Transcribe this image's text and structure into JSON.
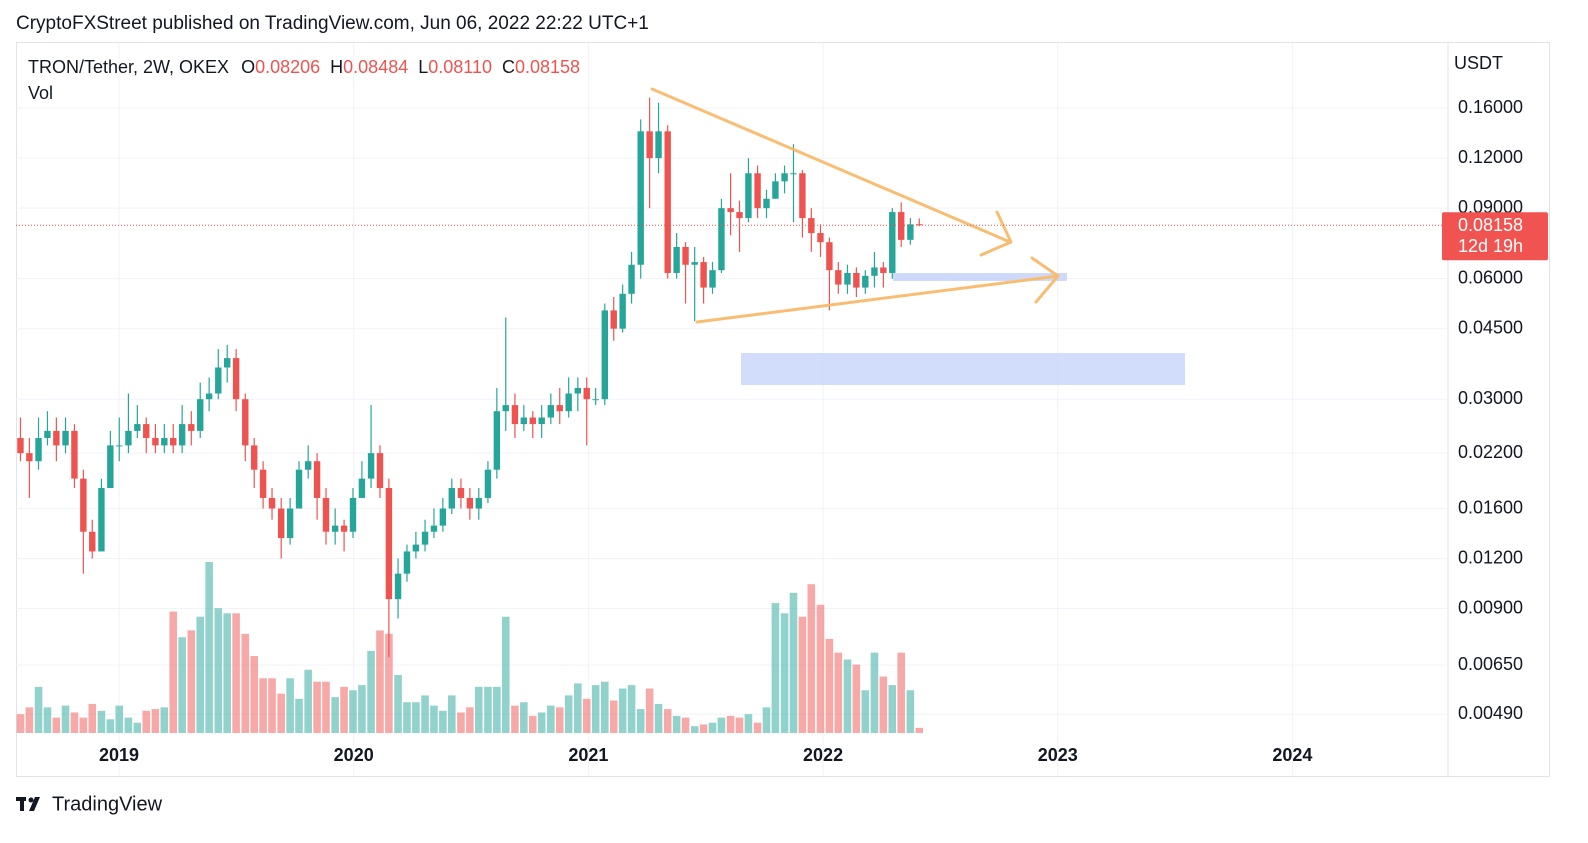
{
  "header": {
    "attribution": "CryptoFXStreet published on TradingView.com, Jun 06, 2022 22:22 UTC+1"
  },
  "footer": {
    "brand": "TradingView"
  },
  "chart_data": {
    "type": "candlestick",
    "title": "TRON/Tether, 2W, OKEX",
    "ohlc_legend": [
      {
        "key": "O",
        "value": "0.08206"
      },
      {
        "key": "H",
        "value": "0.08484"
      },
      {
        "key": "L",
        "value": "0.08110"
      },
      {
        "key": "C",
        "value": "0.08158"
      }
    ],
    "volume_label": "Vol",
    "y_unit": "USDT",
    "last_price_label": "0.08158",
    "countdown": "12d 19h",
    "colors": {
      "up": "#26a69a",
      "down": "#ef5350"
    },
    "log_scale": true,
    "grid": true,
    "xlim": [
      2018.561,
      2024.663
    ],
    "xticks": [
      2019,
      2020,
      2021,
      2022,
      2023,
      2024
    ],
    "ylim": [
      0.0044,
      0.23
    ],
    "yticks": [
      {
        "value": 0.0049,
        "label": "0.00490"
      },
      {
        "value": 0.0065,
        "label": "0.00650"
      },
      {
        "value": 0.009,
        "label": "0.00900"
      },
      {
        "value": 0.012,
        "label": "0.01200"
      },
      {
        "value": 0.016,
        "label": "0.01600"
      },
      {
        "value": 0.022,
        "label": "0.02200"
      },
      {
        "value": 0.03,
        "label": "0.03000"
      },
      {
        "value": 0.045,
        "label": "0.04500"
      },
      {
        "value": 0.06,
        "label": "0.06000"
      },
      {
        "value": 0.09,
        "label": "0.09000"
      },
      {
        "value": 0.12,
        "label": "0.12000"
      },
      {
        "value": 0.16,
        "label": "0.16000"
      }
    ],
    "x": [
      2018.58,
      2018.618,
      2018.657,
      2018.695,
      2018.733,
      2018.772,
      2018.81,
      2018.848,
      2018.886,
      2018.925,
      2018.963,
      2019.001,
      2019.04,
      2019.078,
      2019.116,
      2019.155,
      2019.193,
      2019.231,
      2019.269,
      2019.308,
      2019.346,
      2019.384,
      2019.423,
      2019.461,
      2019.499,
      2019.538,
      2019.576,
      2019.614,
      2019.652,
      2019.691,
      2019.729,
      2019.767,
      2019.806,
      2019.844,
      2019.882,
      2019.921,
      2019.959,
      2019.997,
      2020.035,
      2020.074,
      2020.112,
      2020.15,
      2020.189,
      2020.227,
      2020.265,
      2020.304,
      2020.342,
      2020.38,
      2020.418,
      2020.457,
      2020.495,
      2020.533,
      2020.572,
      2020.61,
      2020.648,
      2020.687,
      2020.725,
      2020.763,
      2020.801,
      2020.84,
      2020.878,
      2020.916,
      2020.955,
      2020.993,
      2021.031,
      2021.07,
      2021.108,
      2021.146,
      2021.184,
      2021.223,
      2021.261,
      2021.299,
      2021.338,
      2021.376,
      2021.414,
      2021.453,
      2021.491,
      2021.529,
      2021.567,
      2021.606,
      2021.644,
      2021.682,
      2021.721,
      2021.759,
      2021.797,
      2021.836,
      2021.874,
      2021.912,
      2021.95,
      2021.989,
      2022.027,
      2022.065,
      2022.104,
      2022.142,
      2022.18,
      2022.219,
      2022.257,
      2022.295,
      2022.333,
      2022.372,
      2022.41
    ],
    "open": [
      0.024,
      0.022,
      0.021,
      0.024,
      0.025,
      0.023,
      0.025,
      0.019,
      0.014,
      0.0125,
      0.018,
      0.023,
      0.023,
      0.025,
      0.026,
      0.024,
      0.023,
      0.024,
      0.023,
      0.026,
      0.025,
      0.03,
      0.031,
      0.036,
      0.038,
      0.03,
      0.023,
      0.02,
      0.017,
      0.016,
      0.0135,
      0.016,
      0.02,
      0.021,
      0.017,
      0.014,
      0.0145,
      0.014,
      0.017,
      0.019,
      0.022,
      0.018,
      0.0095,
      0.011,
      0.0125,
      0.013,
      0.014,
      0.0145,
      0.016,
      0.018,
      0.017,
      0.016,
      0.017,
      0.02,
      0.028,
      0.029,
      0.026,
      0.027,
      0.026,
      0.027,
      0.029,
      0.028,
      0.031,
      0.032,
      0.03,
      0.03,
      0.05,
      0.045,
      0.055,
      0.065,
      0.14,
      0.12,
      0.14,
      0.062,
      0.072,
      0.065,
      0.066,
      0.057,
      0.063,
      0.09,
      0.088,
      0.085,
      0.11,
      0.09,
      0.095,
      0.105,
      0.11,
      0.11,
      0.085,
      0.078,
      0.074,
      0.063,
      0.058,
      0.062,
      0.057,
      0.061,
      0.064,
      0.062,
      0.088,
      0.075,
      0.08206
    ],
    "high": [
      0.027,
      0.024,
      0.027,
      0.028,
      0.027,
      0.027,
      0.026,
      0.02,
      0.015,
      0.019,
      0.025,
      0.027,
      0.031,
      0.029,
      0.027,
      0.026,
      0.026,
      0.026,
      0.029,
      0.028,
      0.033,
      0.034,
      0.04,
      0.041,
      0.04,
      0.031,
      0.024,
      0.021,
      0.018,
      0.017,
      0.017,
      0.021,
      0.023,
      0.022,
      0.018,
      0.016,
      0.015,
      0.018,
      0.021,
      0.029,
      0.023,
      0.019,
      0.012,
      0.013,
      0.014,
      0.015,
      0.016,
      0.017,
      0.019,
      0.019,
      0.018,
      0.018,
      0.021,
      0.032,
      0.048,
      0.031,
      0.029,
      0.028,
      0.029,
      0.031,
      0.032,
      0.034,
      0.034,
      0.034,
      0.032,
      0.052,
      0.054,
      0.058,
      0.07,
      0.15,
      0.17,
      0.165,
      0.145,
      0.078,
      0.074,
      0.072,
      0.068,
      0.066,
      0.095,
      0.11,
      0.094,
      0.12,
      0.115,
      0.1,
      0.11,
      0.115,
      0.13,
      0.112,
      0.09,
      0.082,
      0.076,
      0.066,
      0.065,
      0.064,
      0.063,
      0.07,
      0.066,
      0.09,
      0.093,
      0.085,
      0.08484
    ],
    "low": [
      0.021,
      0.017,
      0.02,
      0.023,
      0.021,
      0.022,
      0.018,
      0.011,
      0.012,
      0.0125,
      0.018,
      0.021,
      0.022,
      0.024,
      0.022,
      0.022,
      0.022,
      0.022,
      0.022,
      0.023,
      0.024,
      0.028,
      0.03,
      0.033,
      0.028,
      0.021,
      0.018,
      0.016,
      0.015,
      0.012,
      0.013,
      0.016,
      0.019,
      0.015,
      0.013,
      0.013,
      0.0125,
      0.0135,
      0.017,
      0.018,
      0.017,
      0.0068,
      0.0085,
      0.0105,
      0.012,
      0.0125,
      0.0135,
      0.014,
      0.0155,
      0.016,
      0.015,
      0.015,
      0.0165,
      0.019,
      0.025,
      0.024,
      0.025,
      0.024,
      0.024,
      0.026,
      0.026,
      0.027,
      0.028,
      0.023,
      0.029,
      0.029,
      0.042,
      0.044,
      0.052,
      0.06,
      0.09,
      0.11,
      0.06,
      0.06,
      0.052,
      0.047,
      0.052,
      0.055,
      0.062,
      0.077,
      0.07,
      0.083,
      0.085,
      0.085,
      0.095,
      0.098,
      0.083,
      0.076,
      0.07,
      0.068,
      0.05,
      0.055,
      0.055,
      0.054,
      0.055,
      0.057,
      0.057,
      0.06,
      0.072,
      0.073,
      0.0811
    ],
    "close": [
      0.022,
      0.021,
      0.024,
      0.025,
      0.023,
      0.025,
      0.019,
      0.014,
      0.0125,
      0.018,
      0.023,
      0.023,
      0.025,
      0.026,
      0.024,
      0.023,
      0.024,
      0.023,
      0.026,
      0.025,
      0.03,
      0.031,
      0.036,
      0.038,
      0.03,
      0.023,
      0.02,
      0.017,
      0.016,
      0.0135,
      0.016,
      0.02,
      0.021,
      0.017,
      0.014,
      0.0145,
      0.014,
      0.017,
      0.019,
      0.022,
      0.018,
      0.0095,
      0.011,
      0.0125,
      0.013,
      0.014,
      0.0145,
      0.016,
      0.018,
      0.017,
      0.016,
      0.017,
      0.02,
      0.028,
      0.029,
      0.026,
      0.027,
      0.026,
      0.027,
      0.029,
      0.028,
      0.031,
      0.032,
      0.03,
      0.03,
      0.05,
      0.045,
      0.055,
      0.065,
      0.14,
      0.12,
      0.14,
      0.062,
      0.072,
      0.065,
      0.066,
      0.057,
      0.063,
      0.09,
      0.088,
      0.085,
      0.11,
      0.09,
      0.095,
      0.105,
      0.11,
      0.11,
      0.085,
      0.078,
      0.074,
      0.063,
      0.058,
      0.062,
      0.057,
      0.061,
      0.064,
      0.062,
      0.088,
      0.075,
      0.082,
      0.08158
    ],
    "volume": [
      11,
      15,
      27,
      15,
      9,
      16,
      12,
      9,
      17,
      13,
      8,
      16,
      9,
      6,
      13,
      14,
      15,
      71,
      56,
      60,
      68,
      100,
      73,
      70,
      70,
      58,
      45,
      32,
      32,
      23,
      32,
      20,
      37,
      30,
      30,
      21,
      27,
      25,
      28,
      48,
      60,
      58,
      34,
      18,
      18,
      22,
      16,
      13,
      22,
      12,
      15,
      27,
      27,
      27,
      68,
      16,
      18,
      10,
      12,
      16,
      15,
      22,
      29,
      20,
      28,
      30,
      19,
      26,
      28,
      14,
      26,
      17,
      14,
      10,
      9,
      4,
      5,
      6,
      9,
      10,
      9,
      11,
      6,
      15,
      76,
      70,
      82,
      68,
      87,
      75,
      55,
      47,
      43,
      40,
      25,
      47,
      33,
      28,
      47,
      25,
      3
    ]
  }
}
